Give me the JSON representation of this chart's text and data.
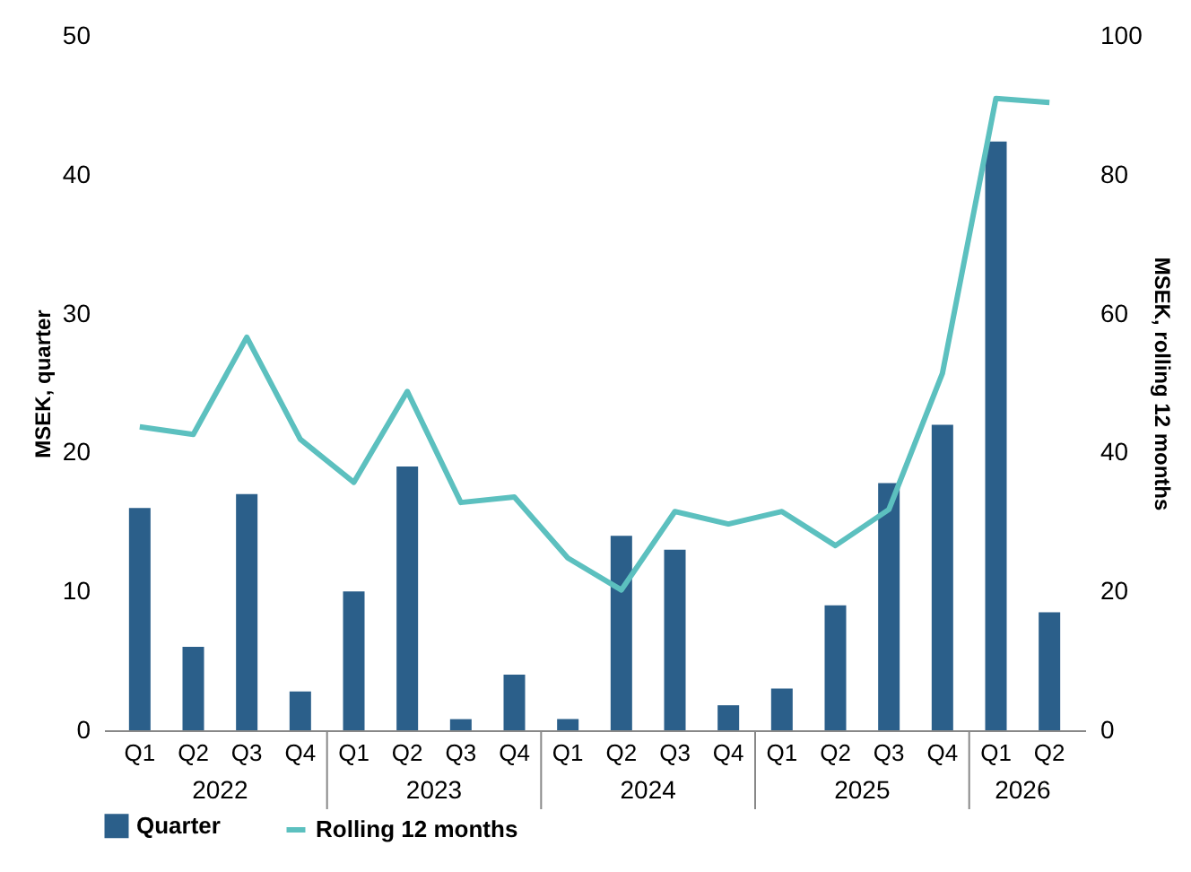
{
  "chart_data": {
    "type": "bar",
    "categories": [
      "Q1",
      "Q2",
      "Q3",
      "Q4",
      "Q1",
      "Q2",
      "Q3",
      "Q4",
      "Q1",
      "Q2",
      "Q3",
      "Q4",
      "Q1",
      "Q2",
      "Q3",
      "Q4",
      "Q1",
      "Q2"
    ],
    "annotations": [
      "2022",
      "2023",
      "2024",
      "2025",
      "2026"
    ],
    "ylabel": "MSEK, quarter",
    "y2label": "MSEK, rolling 12 months",
    "ylim": [
      0,
      50
    ],
    "yticks": [
      0,
      10,
      20,
      30,
      40,
      50
    ],
    "y2lim": [
      0,
      100
    ],
    "y2ticks": [
      0,
      20,
      40,
      60,
      80,
      100
    ],
    "legend": "bottom",
    "series": [
      {
        "name": "Quarter",
        "color": "#2b5f8a",
        "values": [
          16,
          6,
          17,
          2.8,
          10,
          19,
          0.8,
          4,
          0.8,
          14,
          13,
          1.8,
          3,
          9,
          17.8,
          22,
          42.4,
          8.5
        ]
      },
      {
        "name": "Rolling 12 months",
        "type": "line",
        "axis": "y2",
        "color": "#5cc0bf",
        "values": [
          43.7,
          42.6,
          56.6,
          41.9,
          35.7,
          48.8,
          32.8,
          33.6,
          24.8,
          20.2,
          31.5,
          29.7,
          31.5,
          26.6,
          31.8,
          51.4,
          91,
          90.4
        ]
      }
    ]
  }
}
